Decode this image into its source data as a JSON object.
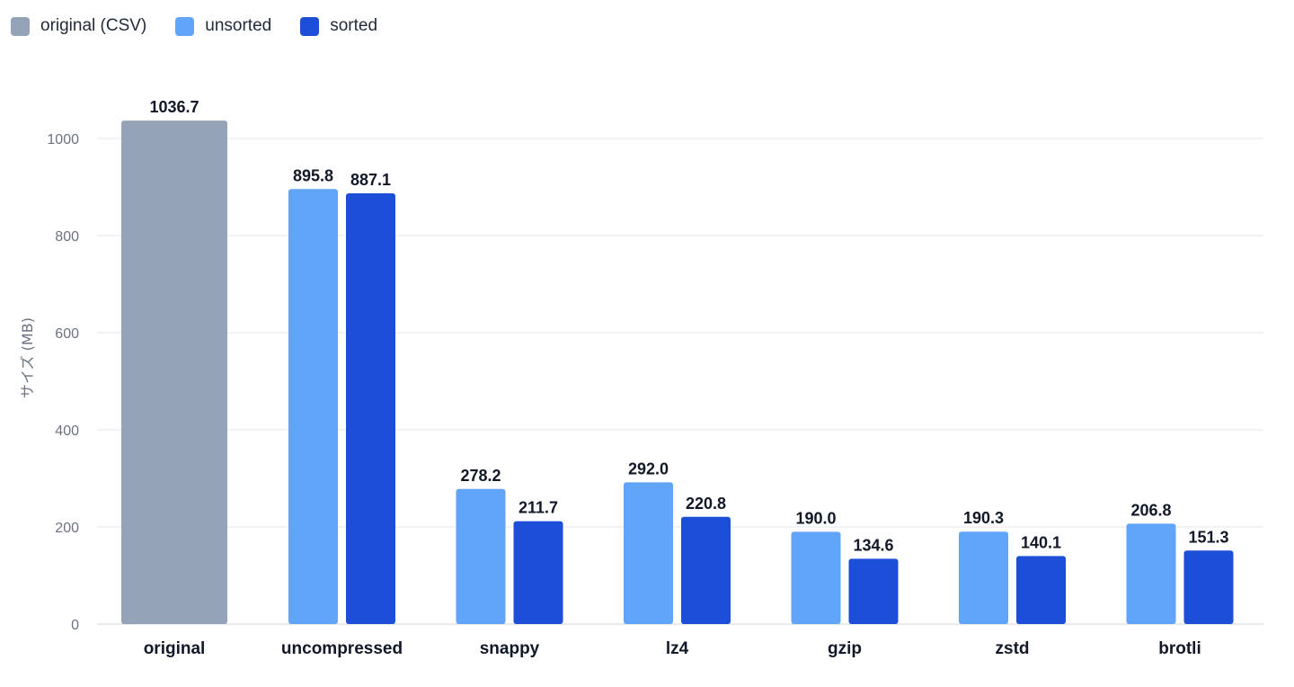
{
  "chart_data": {
    "type": "bar",
    "title": "",
    "xlabel": "",
    "ylabel": "サイズ (MB)",
    "ylim": [
      0,
      1100
    ],
    "yticks": [
      0,
      200,
      400,
      600,
      800,
      1000
    ],
    "grid": true,
    "legend_position": "top-left",
    "categories": [
      "original",
      "uncompressed",
      "snappy",
      "lz4",
      "gzip",
      "zstd",
      "brotli"
    ],
    "series": [
      {
        "name": "original (CSV)",
        "color": "#94a3b8",
        "values": [
          1036.7,
          null,
          null,
          null,
          null,
          null,
          null
        ],
        "labels": [
          "1036.7",
          "",
          "",
          "",
          "",
          "",
          ""
        ]
      },
      {
        "name": "unsorted",
        "color": "#60a5fa",
        "values": [
          null,
          895.8,
          278.2,
          292.0,
          190.0,
          190.3,
          206.8
        ],
        "labels": [
          "",
          "895.8",
          "278.2",
          "292.0",
          "190.0",
          "190.3",
          "206.8"
        ]
      },
      {
        "name": "sorted",
        "color": "#1d4ed8",
        "values": [
          null,
          887.1,
          211.7,
          220.8,
          134.6,
          140.1,
          151.3
        ],
        "labels": [
          "",
          "887.1",
          "211.7",
          "220.8",
          "134.6",
          "140.1",
          "151.3"
        ]
      }
    ]
  }
}
